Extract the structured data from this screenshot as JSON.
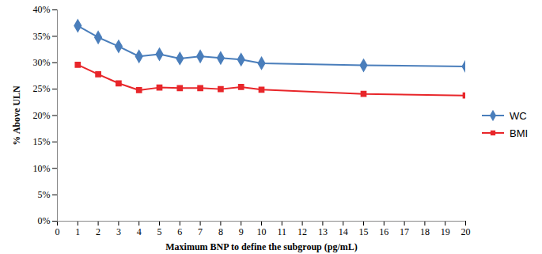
{
  "chart_data": {
    "type": "line",
    "x_label": "Maximum BNP to define the subgroup (pg/mL)",
    "y_label": "% Above ULN",
    "x": [
      1,
      2,
      3,
      4,
      5,
      6,
      7,
      8,
      9,
      10,
      15,
      20
    ],
    "series": [
      {
        "name": "WC",
        "color": "#4a7ebb",
        "marker": "diamond",
        "values": [
          37.0,
          34.8,
          33.1,
          31.2,
          31.6,
          30.8,
          31.2,
          30.9,
          30.6,
          29.9,
          29.5,
          29.3
        ]
      },
      {
        "name": "BMI",
        "color": "#e8262a",
        "marker": "square",
        "values": [
          29.6,
          27.8,
          26.1,
          24.8,
          25.3,
          25.2,
          25.2,
          25.0,
          25.4,
          24.9,
          24.1,
          23.8
        ]
      }
    ],
    "xlim": [
      0,
      20
    ],
    "xticks": [
      0,
      1,
      2,
      3,
      4,
      5,
      6,
      7,
      8,
      9,
      10,
      11,
      12,
      13,
      14,
      15,
      16,
      17,
      18,
      19,
      20
    ],
    "ylim": [
      0,
      40
    ],
    "yticks": [
      {
        "value": 0,
        "label": "0%"
      },
      {
        "value": 5,
        "label": "5%"
      },
      {
        "value": 10,
        "label": "10%"
      },
      {
        "value": 15,
        "label": "15%"
      },
      {
        "value": 20,
        "label": "20%"
      },
      {
        "value": 25,
        "label": "25%"
      },
      {
        "value": 30,
        "label": "30%"
      },
      {
        "value": 35,
        "label": "35%"
      },
      {
        "value": 40,
        "label": "40%"
      }
    ],
    "grid": false,
    "legend": "right"
  }
}
